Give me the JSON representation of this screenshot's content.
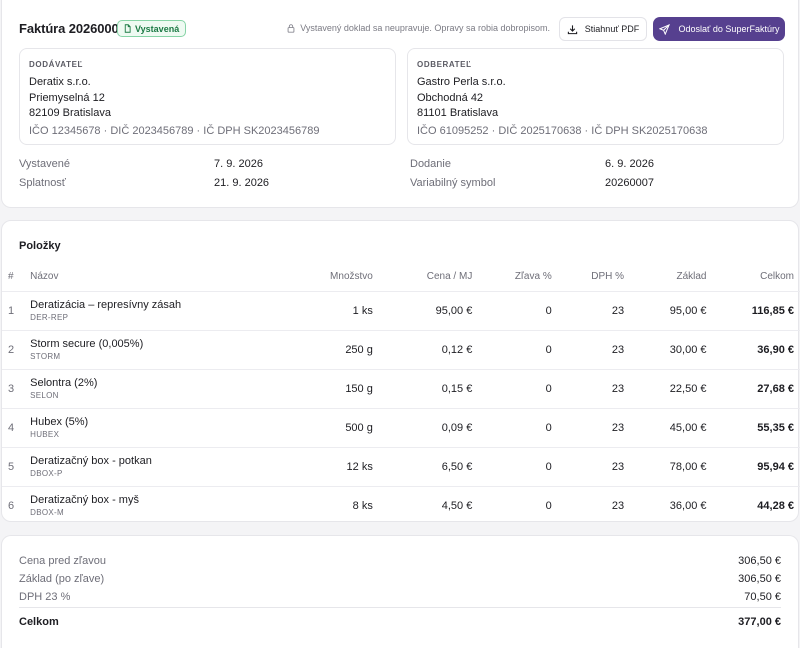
{
  "header": {
    "title": "Faktúra 20260007",
    "status_badge": "Vystavená",
    "lock_note": "Vystavený doklad sa neupravuje. Opravy sa robia dobropisom.",
    "download_pdf": "Stiahnuť PDF",
    "send_button": "Odoslať do SuperFaktúry"
  },
  "supplier": {
    "label": "DODÁVATEĽ",
    "name": "Deratix s.r.o.",
    "street": "Priemyselná 12",
    "city": "82109 Bratislava",
    "ids": "IČO 12345678 · DIČ 2023456789 · IČ DPH SK2023456789"
  },
  "customer": {
    "label": "ODBERATEĽ",
    "name": "Gastro Perla s.r.o.",
    "street": "Obchodná 42",
    "city": "81101 Bratislava",
    "ids": "IČO 61095252 · DIČ 2025170638 · IČ DPH SK2025170638"
  },
  "meta": {
    "issued_label": "Vystavené",
    "issued_value": "7. 9. 2026",
    "due_label": "Splatnosť",
    "due_value": "21. 9. 2026",
    "delivery_label": "Dodanie",
    "delivery_value": "6. 9. 2026",
    "vs_label": "Variabilný symbol",
    "vs_value": "20260007"
  },
  "items": {
    "title": "Položky",
    "columns": {
      "num": "#",
      "name": "Názov",
      "qty": "Množstvo",
      "price": "Cena / MJ",
      "discount": "Zľava %",
      "vat": "DPH %",
      "base": "Základ",
      "total": "Celkom"
    },
    "rows": [
      {
        "num": "1",
        "name": "Deratizácia – represívny zásah",
        "code": "DER-REP",
        "qty": "1 ks",
        "price": "95,00 €",
        "discount": "0",
        "vat": "23",
        "base": "95,00 €",
        "total": "116,85 €"
      },
      {
        "num": "2",
        "name": "Storm secure (0,005%)",
        "code": "STORM",
        "qty": "250 g",
        "price": "0,12 €",
        "discount": "0",
        "vat": "23",
        "base": "30,00 €",
        "total": "36,90 €"
      },
      {
        "num": "3",
        "name": "Selontra (2%)",
        "code": "SELON",
        "qty": "150 g",
        "price": "0,15 €",
        "discount": "0",
        "vat": "23",
        "base": "22,50 €",
        "total": "27,68 €"
      },
      {
        "num": "4",
        "name": "Hubex (5%)",
        "code": "HUBEX",
        "qty": "500 g",
        "price": "0,09 €",
        "discount": "0",
        "vat": "23",
        "base": "45,00 €",
        "total": "55,35 €"
      },
      {
        "num": "5",
        "name": "Deratizačný box - potkan",
        "code": "DBOX-P",
        "qty": "12 ks",
        "price": "6,50 €",
        "discount": "0",
        "vat": "23",
        "base": "78,00 €",
        "total": "95,94 €"
      },
      {
        "num": "6",
        "name": "Deratizačný box - myš",
        "code": "DBOX-M",
        "qty": "8 ks",
        "price": "4,50 €",
        "discount": "0",
        "vat": "23",
        "base": "36,00 €",
        "total": "44,28 €"
      }
    ]
  },
  "summary": {
    "before_discount_label": "Cena pred zľavou",
    "before_discount_value": "306,50 €",
    "base_label": "Základ (po zľave)",
    "base_value": "306,50 €",
    "vat_label": "DPH 23 %",
    "vat_value": "70,50 €",
    "total_label": "Celkom",
    "total_value": "377,00 €"
  },
  "colors": {
    "accent": "#56408f",
    "badge_green": "#1c7a45"
  }
}
